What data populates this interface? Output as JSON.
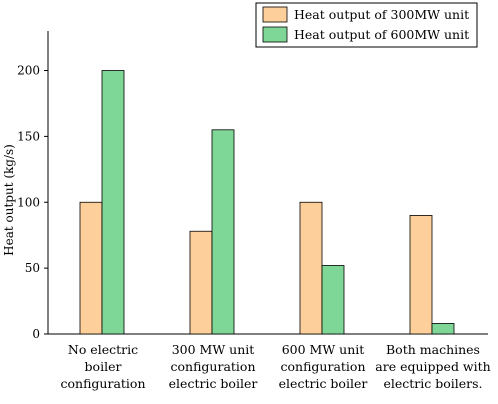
{
  "chart_data": {
    "type": "bar",
    "title": "",
    "xlabel": "",
    "ylabel": "Heat output (kg/s)",
    "ylim": [
      0,
      230
    ],
    "yticks": [
      0,
      50,
      100,
      150,
      200
    ],
    "grid": false,
    "legend_position": "top-right",
    "categories": [
      [
        "No electric",
        "boiler",
        "configuration"
      ],
      [
        "300 MW unit",
        "configuration",
        "electric boiler"
      ],
      [
        "600 MW unit",
        "configuration",
        "electric boiler"
      ],
      [
        "Both machines",
        "are equipped with",
        "electric boilers."
      ]
    ],
    "series": [
      {
        "name": "Heat output of 300MW unit",
        "color": "#fdcf9b",
        "values": [
          100,
          78,
          100,
          90
        ]
      },
      {
        "name": "Heat output of 600MW unit",
        "color": "#7ed796",
        "values": [
          200,
          155,
          52,
          8
        ]
      }
    ]
  }
}
